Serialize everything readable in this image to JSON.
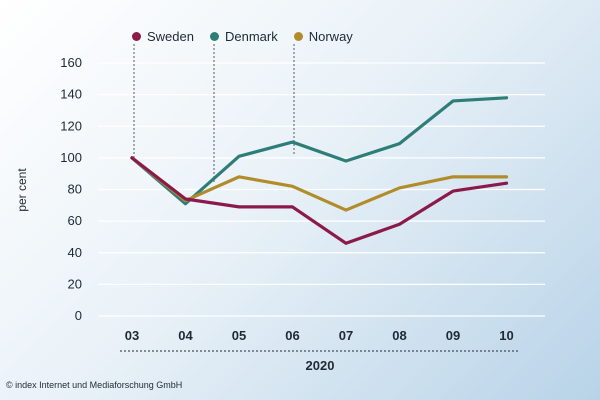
{
  "chart_data": {
    "type": "line",
    "categories": [
      "03",
      "04",
      "05",
      "06",
      "07",
      "08",
      "09",
      "10"
    ],
    "series": [
      {
        "name": "Sweden",
        "color": "#8b1a4a",
        "values": [
          100,
          74,
          69,
          69,
          46,
          58,
          79,
          84
        ]
      },
      {
        "name": "Denmark",
        "color": "#2e7d78",
        "values": [
          100,
          71,
          101,
          110,
          98,
          109,
          136,
          138
        ]
      },
      {
        "name": "Norway",
        "color": "#b08d2a",
        "values": [
          100,
          73,
          88,
          82,
          67,
          81,
          88,
          88
        ]
      }
    ],
    "ylim": [
      0,
      160
    ],
    "yticks": [
      0,
      20,
      40,
      60,
      80,
      100,
      120,
      140,
      160
    ],
    "ylabel": "per cent",
    "xgroup_label": "2020",
    "grid": true,
    "legend_position": "top-left"
  },
  "copyright": "© index Internet und Mediaforschung GmbH"
}
